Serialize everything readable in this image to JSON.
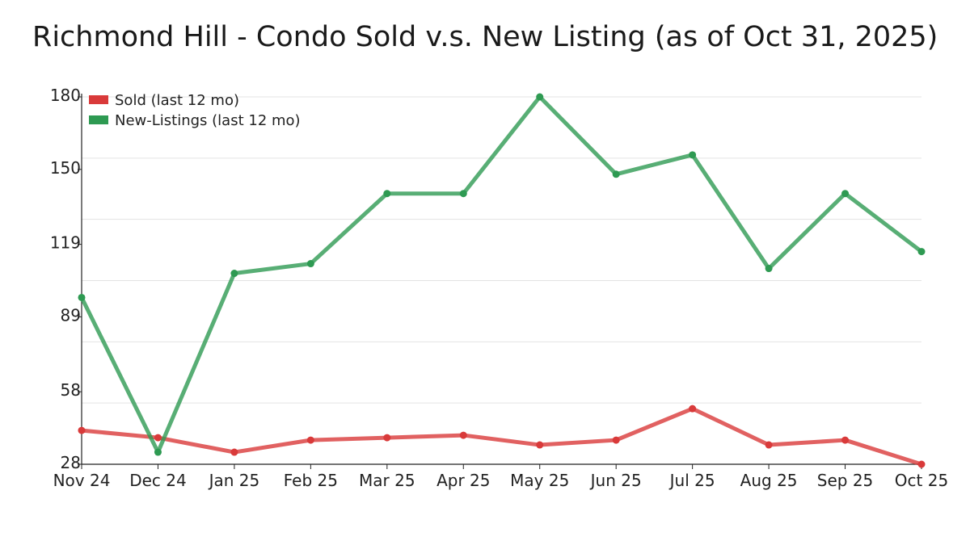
{
  "chart_data": {
    "type": "line",
    "title": "Richmond Hill - Condo Sold v.s. New Listing (as of Oct 31, 2025)",
    "xlabel": "",
    "ylabel": "",
    "categories": [
      "Nov 24",
      "Dec 24",
      "Jan 25",
      "Feb 25",
      "Mar 25",
      "Apr 25",
      "May 25",
      "Jun 25",
      "Jul 25",
      "Aug 25",
      "Sep 25",
      "Oct 25"
    ],
    "ylim": [
      28,
      180
    ],
    "yticks": [
      28,
      58,
      89,
      119,
      150,
      180
    ],
    "grid": true,
    "legend_position": "top-left",
    "series": [
      {
        "name": "Sold (last 12 mo)",
        "color": "#d93a3a",
        "values": [
          42,
          39,
          33,
          38,
          39,
          40,
          36,
          38,
          51,
          36,
          38,
          28
        ]
      },
      {
        "name": "New-Listings (last 12 mo)",
        "color": "#2e9a52",
        "values": [
          97,
          33,
          107,
          111,
          140,
          140,
          180,
          148,
          156,
          109,
          140,
          116
        ]
      }
    ]
  }
}
